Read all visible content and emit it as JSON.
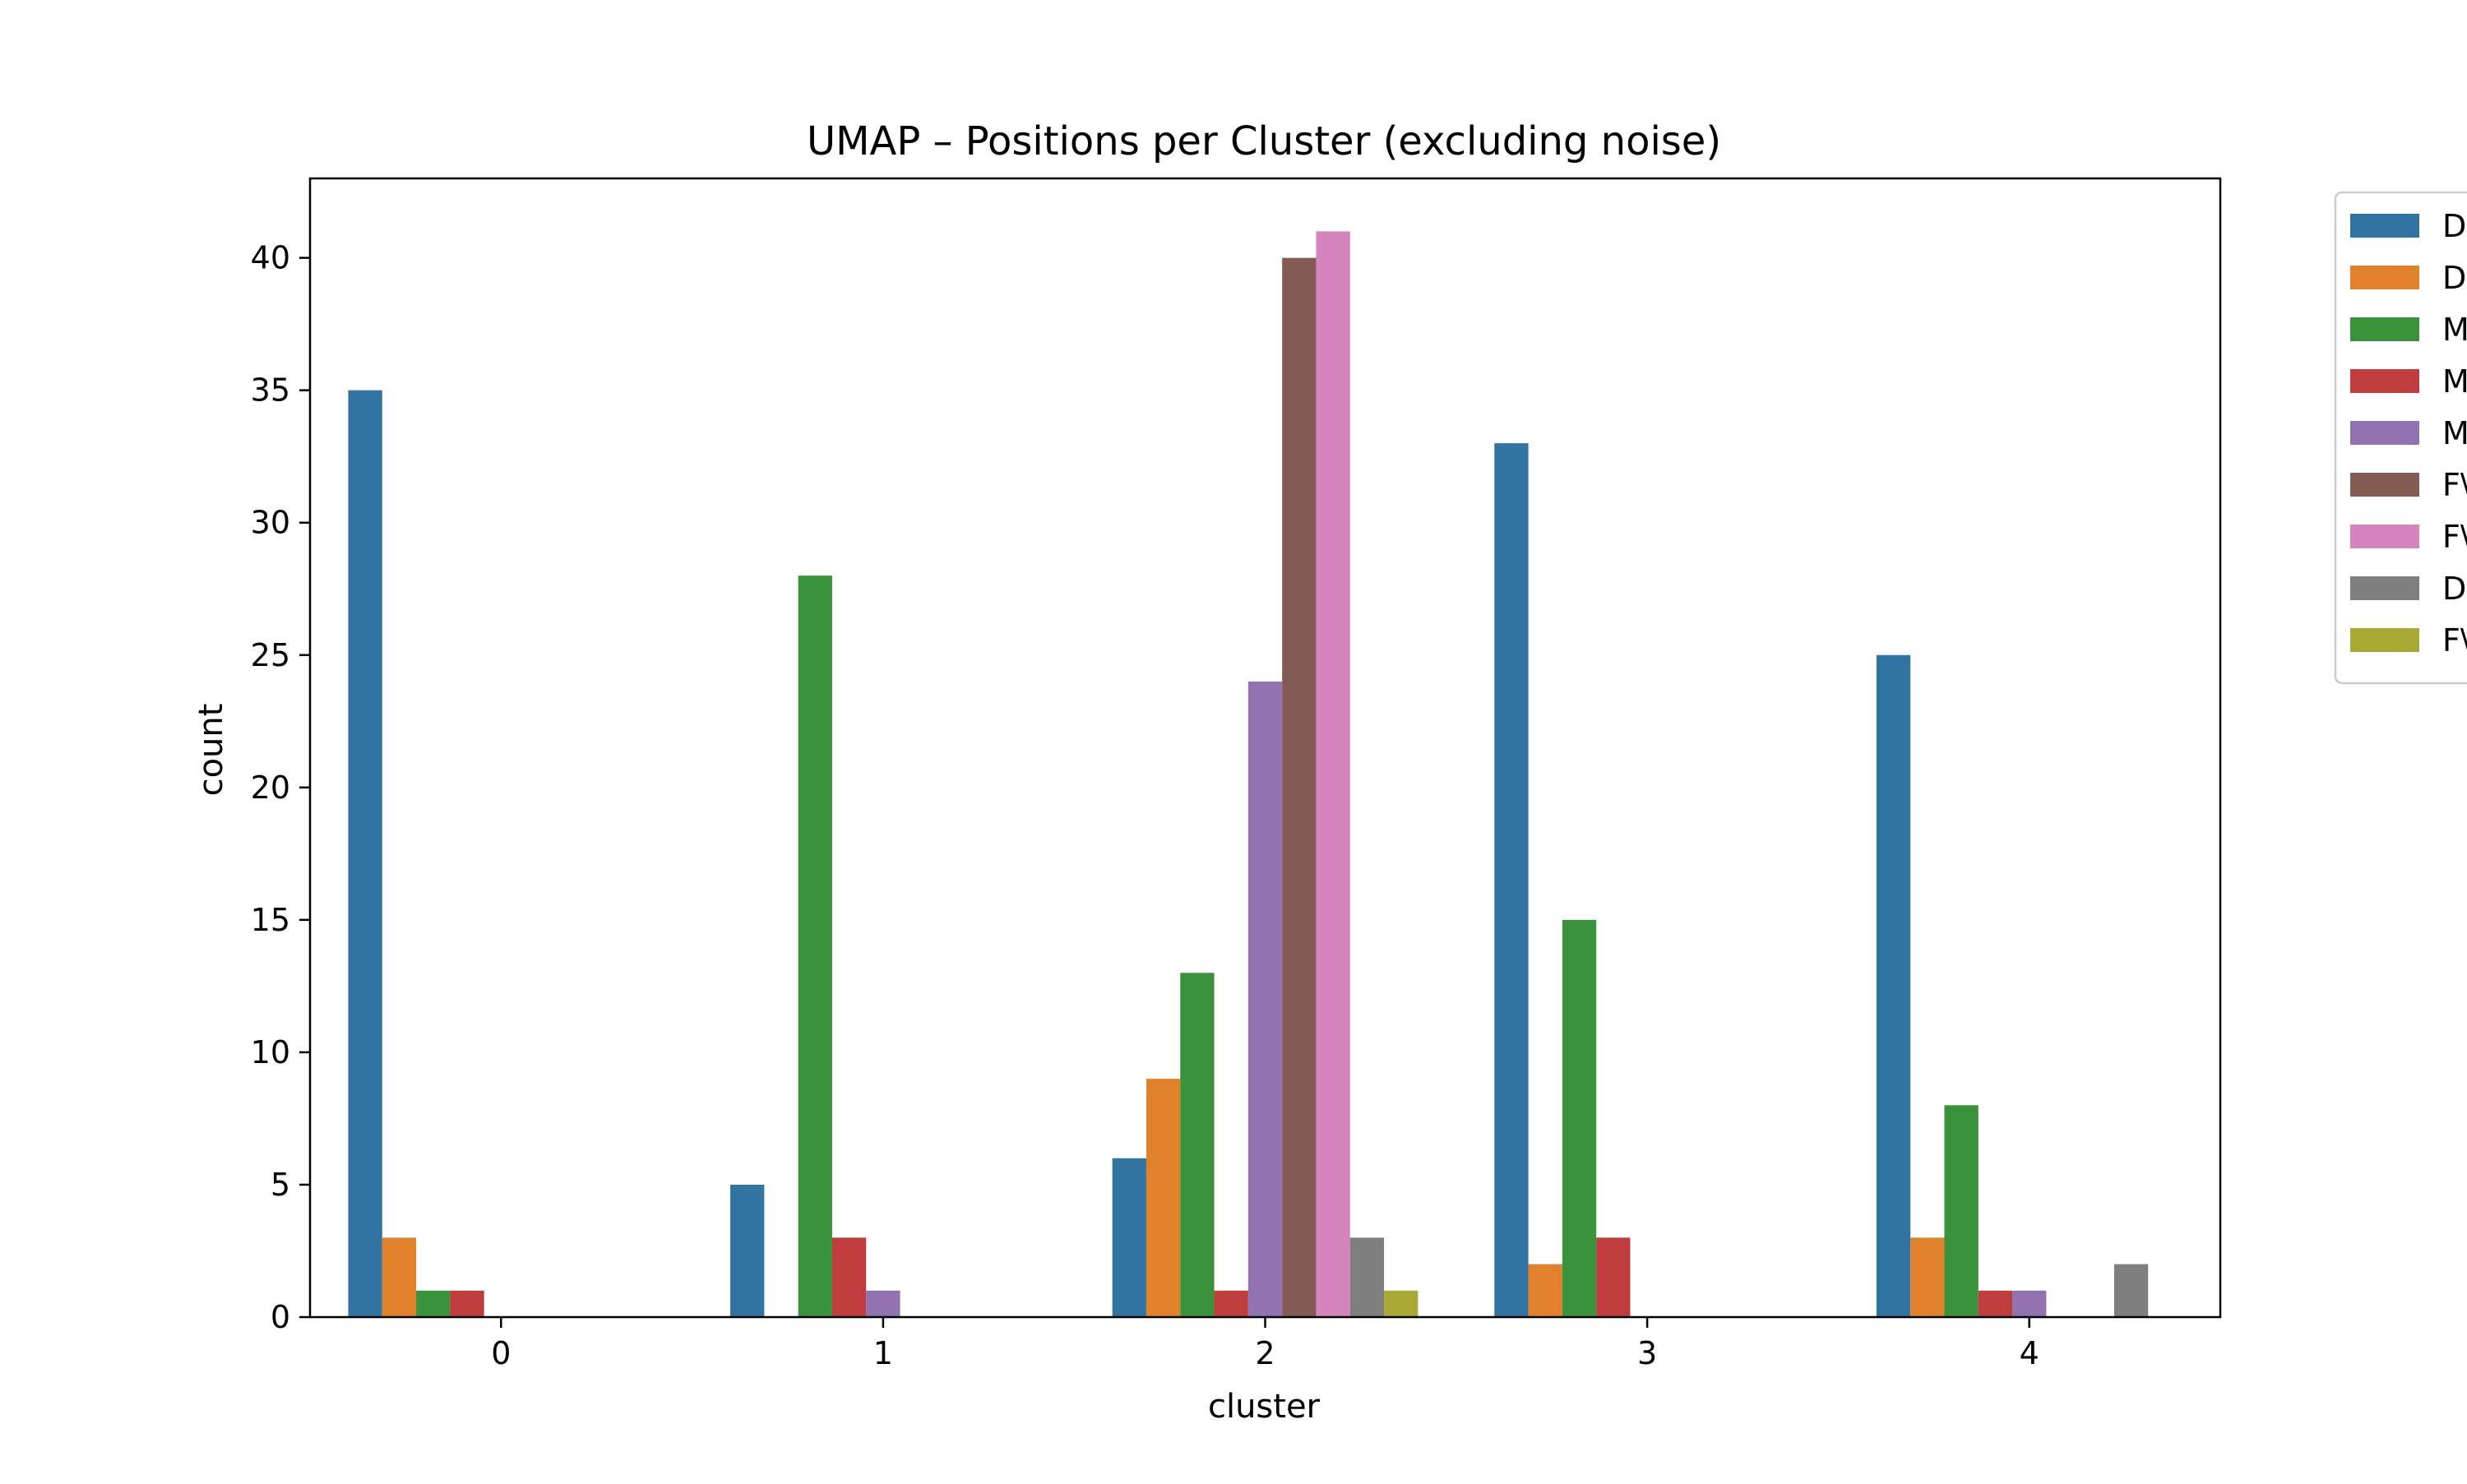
{
  "chart_data": {
    "type": "bar",
    "title": "UMAP – Positions per Cluster (excluding noise)",
    "xlabel": "cluster",
    "ylabel": "count",
    "categories": [
      "0",
      "1",
      "2",
      "3",
      "4"
    ],
    "ylim": [
      0,
      43
    ],
    "yticks": [
      0,
      5,
      10,
      15,
      20,
      25,
      30,
      35,
      40
    ],
    "grid": false,
    "legend_position": "outside-right",
    "series": [
      {
        "name": "D",
        "color": "#3274a1",
        "values": [
          35,
          5,
          6,
          33,
          25
        ]
      },
      {
        "name": "D",
        "color": "#e1812c",
        "values": [
          3,
          0,
          9,
          2,
          3
        ]
      },
      {
        "name": "M",
        "color": "#3a923a",
        "values": [
          1,
          28,
          13,
          15,
          8
        ]
      },
      {
        "name": "M",
        "color": "#c03d3e",
        "values": [
          1,
          3,
          1,
          3,
          1
        ]
      },
      {
        "name": "M",
        "color": "#9372b2",
        "values": [
          0,
          1,
          24,
          0,
          1
        ]
      },
      {
        "name": "F\\",
        "color": "#845b53",
        "values": [
          0,
          0,
          40,
          0,
          0
        ]
      },
      {
        "name": "F\\",
        "color": "#d684bd",
        "values": [
          0,
          0,
          41,
          0,
          0
        ]
      },
      {
        "name": "D",
        "color": "#7f7f7f",
        "values": [
          0,
          0,
          3,
          0,
          2
        ]
      },
      {
        "name": "F\\",
        "color": "#a9aa35",
        "values": [
          0,
          0,
          1,
          0,
          0
        ]
      }
    ]
  }
}
